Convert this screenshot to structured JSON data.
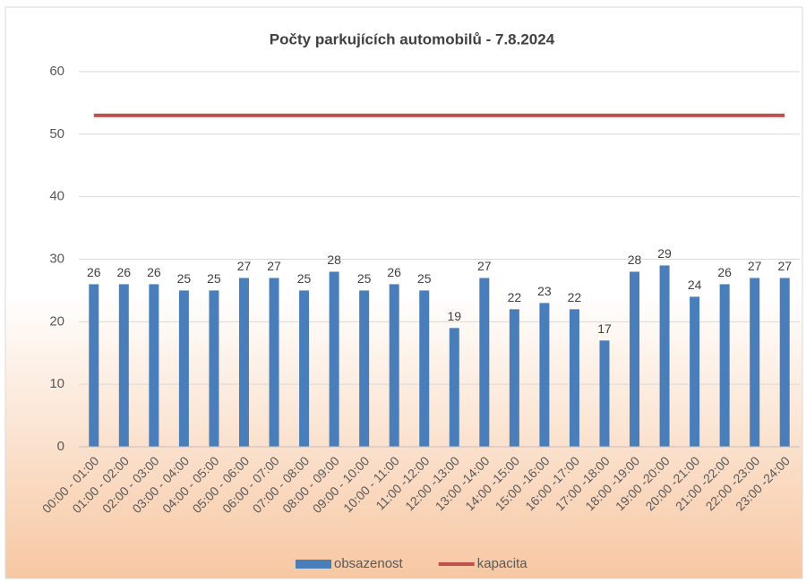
{
  "chart_data": {
    "type": "bar",
    "title": "Počty parkujících automobilů - 7.8.2024",
    "categories": [
      "00:00 - 01:00",
      "01:00 - 02:00",
      "02:00 - 03:00",
      "03:00 - 04:00",
      "04:00 - 05:00",
      "05:00 - 06:00",
      "06:00 - 07:00",
      "07:00 - 08:00",
      "08:00 - 09:00",
      "09:00 - 10:00",
      "10:00 - 11:00",
      "11:00 -12:00",
      "12:00 -13:00",
      "13:00 -14:00",
      "14:00 -15:00",
      "15:00 -16:00",
      "16:00 -17:00",
      "17:00 -18:00",
      "18:00 -19:00",
      "19:00 -20:00",
      "20:00 -21:00",
      "21:00 -22:00",
      "22:00 -23:00",
      "23:00 -24:00"
    ],
    "series": [
      {
        "name": "obsazenost",
        "type": "bar",
        "color": "#4a7ebb",
        "values": [
          26,
          26,
          26,
          25,
          25,
          27,
          27,
          25,
          28,
          25,
          26,
          25,
          19,
          27,
          22,
          23,
          22,
          17,
          28,
          29,
          24,
          26,
          27,
          27
        ]
      },
      {
        "name": "kapacita",
        "type": "line",
        "color": "#c0504d",
        "values": [
          53,
          53,
          53,
          53,
          53,
          53,
          53,
          53,
          53,
          53,
          53,
          53,
          53,
          53,
          53,
          53,
          53,
          53,
          53,
          53,
          53,
          53,
          53,
          53
        ]
      }
    ],
    "ylim": [
      0,
      60
    ],
    "yticks": [
      0,
      10,
      20,
      30,
      40,
      50,
      60
    ],
    "grid": true,
    "legend": "bottom"
  }
}
